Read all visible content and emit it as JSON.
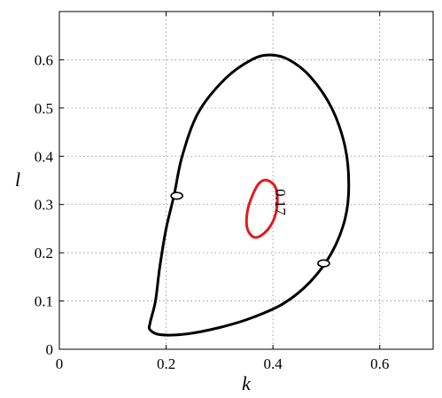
{
  "chart_data": {
    "type": "line",
    "title": "",
    "xlabel": "k",
    "ylabel": "l",
    "xlim": [
      0,
      0.7
    ],
    "ylim": [
      0,
      0.7
    ],
    "x_ticks": [
      0,
      0.2,
      0.4,
      0.6
    ],
    "y_ticks": [
      0,
      0.1,
      0.2,
      0.3,
      0.4,
      0.5,
      0.6
    ],
    "x_tick_labels": [
      "0",
      "0.2",
      "0.4",
      "0.6"
    ],
    "y_tick_labels": [
      "0",
      "0.1",
      "0.2",
      "0.3",
      "0.4",
      "0.5",
      "0.6"
    ],
    "grid": true,
    "series": [
      {
        "color": "#000000",
        "closed": true,
        "points": [
          [
            0.17,
            0.04
          ],
          [
            0.19,
            0.03
          ],
          [
            0.24,
            0.032
          ],
          [
            0.3,
            0.045
          ],
          [
            0.36,
            0.065
          ],
          [
            0.42,
            0.095
          ],
          [
            0.47,
            0.14
          ],
          [
            0.51,
            0.2
          ],
          [
            0.535,
            0.27
          ],
          [
            0.542,
            0.34
          ],
          [
            0.535,
            0.42
          ],
          [
            0.51,
            0.5
          ],
          [
            0.47,
            0.565
          ],
          [
            0.43,
            0.6
          ],
          [
            0.395,
            0.61
          ],
          [
            0.36,
            0.6
          ],
          [
            0.31,
            0.56
          ],
          [
            0.26,
            0.49
          ],
          [
            0.23,
            0.4
          ],
          [
            0.215,
            0.32
          ],
          [
            0.2,
            0.25
          ],
          [
            0.188,
            0.17
          ],
          [
            0.18,
            0.1
          ],
          [
            0.17,
            0.055
          ]
        ]
      },
      {
        "color": "#e31a1c",
        "closed": true,
        "points": [
          [
            0.39,
            0.35
          ],
          [
            0.405,
            0.335
          ],
          [
            0.408,
            0.3
          ],
          [
            0.4,
            0.265
          ],
          [
            0.383,
            0.24
          ],
          [
            0.365,
            0.232
          ],
          [
            0.352,
            0.25
          ],
          [
            0.352,
            0.285
          ],
          [
            0.362,
            0.32
          ],
          [
            0.375,
            0.345
          ]
        ]
      }
    ],
    "markers": [
      {
        "x": 0.22,
        "y": 0.318
      },
      {
        "x": 0.495,
        "y": 0.178
      }
    ],
    "annotations": [
      {
        "text": "0.17",
        "x": 0.405,
        "y": 0.305,
        "rotation": 90
      }
    ]
  }
}
